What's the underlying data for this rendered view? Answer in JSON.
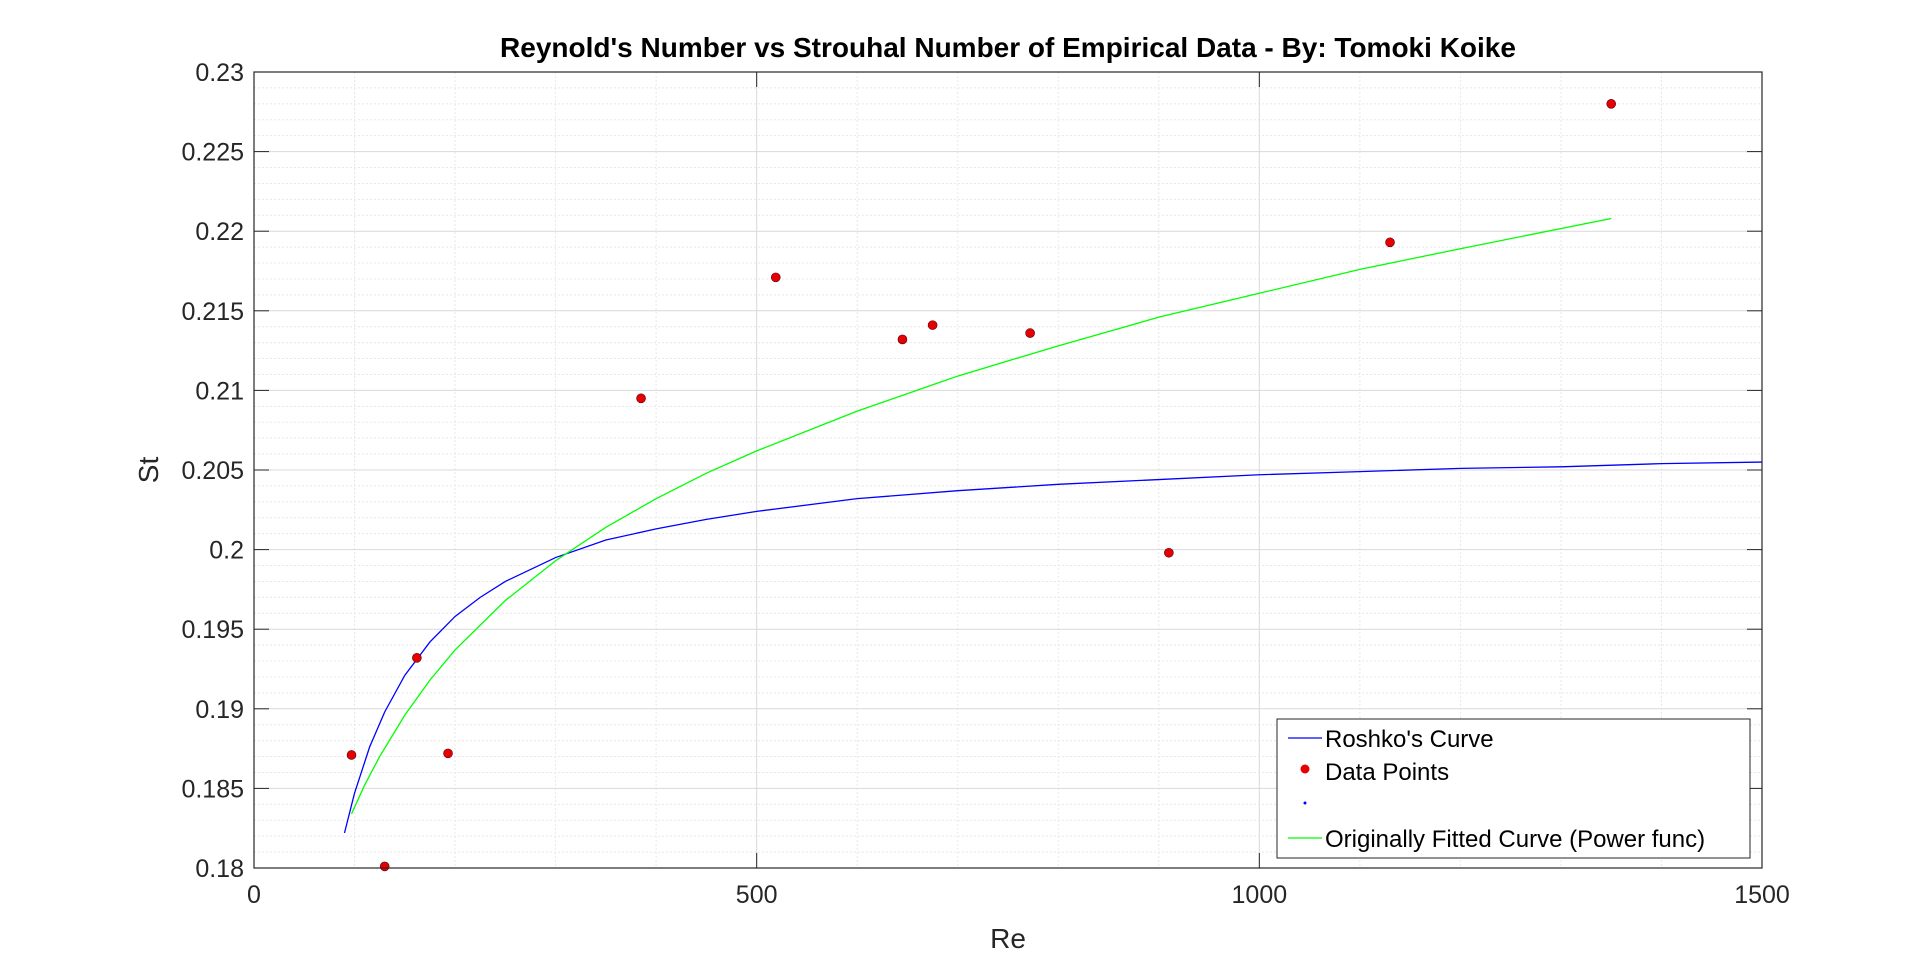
{
  "chart_data": {
    "type": "scatter",
    "title": "Reynold's Number vs Strouhal Number of Empirical Data - By: Tomoki Koike",
    "xlabel": "Re",
    "ylabel": "St",
    "xlim": [
      0,
      1500
    ],
    "ylim": [
      0.18,
      0.23
    ],
    "xticks": [
      0,
      500,
      1000,
      1500
    ],
    "xtick_labels": [
      "0",
      "500",
      "1000",
      "1500"
    ],
    "yticks": [
      0.18,
      0.185,
      0.19,
      0.195,
      0.2,
      0.205,
      0.21,
      0.215,
      0.22,
      0.225,
      0.23
    ],
    "ytick_labels": [
      "0.18",
      "0.185",
      "0.19",
      "0.195",
      "0.2",
      "0.205",
      "0.21",
      "0.215",
      "0.22",
      "0.225",
      "0.23"
    ],
    "grid": true,
    "minor_grid": true,
    "legend_position": "bottom-right",
    "series": [
      {
        "name": "Roshko's Curve",
        "kind": "line",
        "color": "#0000ff",
        "x": [
          90,
          100,
          115,
          130,
          150,
          175,
          200,
          225,
          250,
          300,
          350,
          400,
          450,
          500,
          600,
          700,
          800,
          900,
          1000,
          1100,
          1200,
          1300,
          1400,
          1500
        ],
        "y": [
          0.1822,
          0.1847,
          0.1876,
          0.1898,
          0.1921,
          0.1942,
          0.1958,
          0.197,
          0.198,
          0.1995,
          0.2006,
          0.2013,
          0.2019,
          0.2024,
          0.2032,
          0.2037,
          0.2041,
          0.2044,
          0.2047,
          0.2049,
          0.2051,
          0.2052,
          0.2054,
          0.2055
        ]
      },
      {
        "name": "Data Points",
        "kind": "scatter",
        "color": "#e60000",
        "x": [
          97,
          130,
          162,
          193,
          385,
          519,
          645,
          675,
          772,
          910,
          1130,
          1350
        ],
        "y": [
          0.1871,
          0.1801,
          0.1932,
          0.1872,
          0.2095,
          0.2171,
          0.2132,
          0.2141,
          0.2136,
          0.1998,
          0.2193,
          0.228
        ]
      },
      {
        "name": "",
        "kind": "marker",
        "color": "#0000ff",
        "x": [],
        "y": []
      },
      {
        "name": "Originally Fitted Curve (Power func)",
        "kind": "line",
        "color": "#00ff00",
        "x": [
          97,
          110,
          125,
          150,
          175,
          200,
          250,
          300,
          350,
          400,
          450,
          500,
          600,
          700,
          800,
          900,
          1000,
          1100,
          1200,
          1350
        ],
        "y": [
          0.1834,
          0.1852,
          0.187,
          0.1896,
          0.1918,
          0.1937,
          0.1968,
          0.1993,
          0.2014,
          0.2032,
          0.2048,
          0.2062,
          0.2087,
          0.2109,
          0.2128,
          0.2146,
          0.2161,
          0.2176,
          0.2189,
          0.2208
        ]
      }
    ],
    "legend": [
      {
        "label": "Roshko's Curve",
        "symbol": "line",
        "color": "#0000ff"
      },
      {
        "label": "Data Points",
        "symbol": "dot",
        "color": "#e60000"
      },
      {
        "label": "",
        "symbol": "small-dot",
        "color": "#0000ff"
      },
      {
        "label": "Originally Fitted Curve (Power func)",
        "symbol": "line",
        "color": "#00ff00"
      }
    ]
  }
}
